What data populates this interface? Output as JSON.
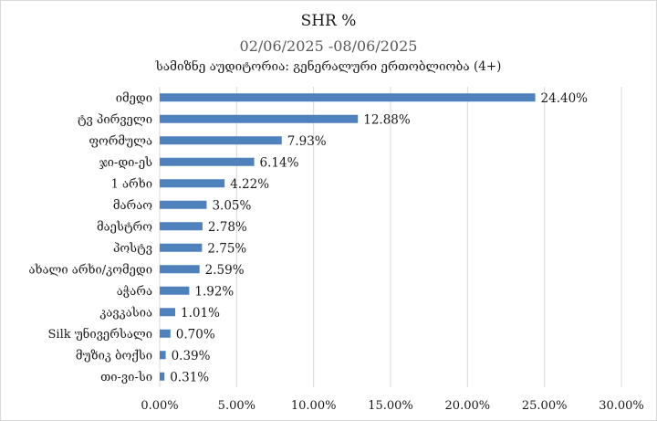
{
  "chart_data": {
    "type": "bar",
    "orientation": "horizontal",
    "title": "SHR %",
    "subtitle": "02/06/2025 -08/06/2025",
    "subtitle2": "სამიზნე აუდიტორია: გენერალური ერთობლიობა (4+)",
    "categories": [
      "იმედი",
      "ტვ პირველი",
      "ფორმულა",
      "ჯი-დი-ეს",
      "1 არხი",
      "მარაო",
      "მაესტრო",
      "პოსტვ",
      "ახალი არხი/კომედი",
      "აჭარა",
      "კავკასია",
      "Silk უნივერსალი",
      "მუზიკ ბოქსი",
      "თი-ვი-სი"
    ],
    "values": [
      24.4,
      12.88,
      7.93,
      6.14,
      4.22,
      3.05,
      2.78,
      2.75,
      2.59,
      1.92,
      1.01,
      0.7,
      0.39,
      0.31
    ],
    "data_labels": [
      "24.40%",
      "12.88%",
      "7.93%",
      "6.14%",
      "4.22%",
      "3.05%",
      "2.78%",
      "2.75%",
      "2.59%",
      "1.92%",
      "1.01%",
      "0.70%",
      "0.39%",
      "0.31%"
    ],
    "xticks": [
      "0.00%",
      "5.00%",
      "10.00%",
      "15.00%",
      "20.00%",
      "25.00%",
      "30.00%"
    ],
    "xlim": [
      0,
      30
    ],
    "grid": true,
    "bar_color": "#4f81bd",
    "grid_color": "#d9d9d9"
  }
}
